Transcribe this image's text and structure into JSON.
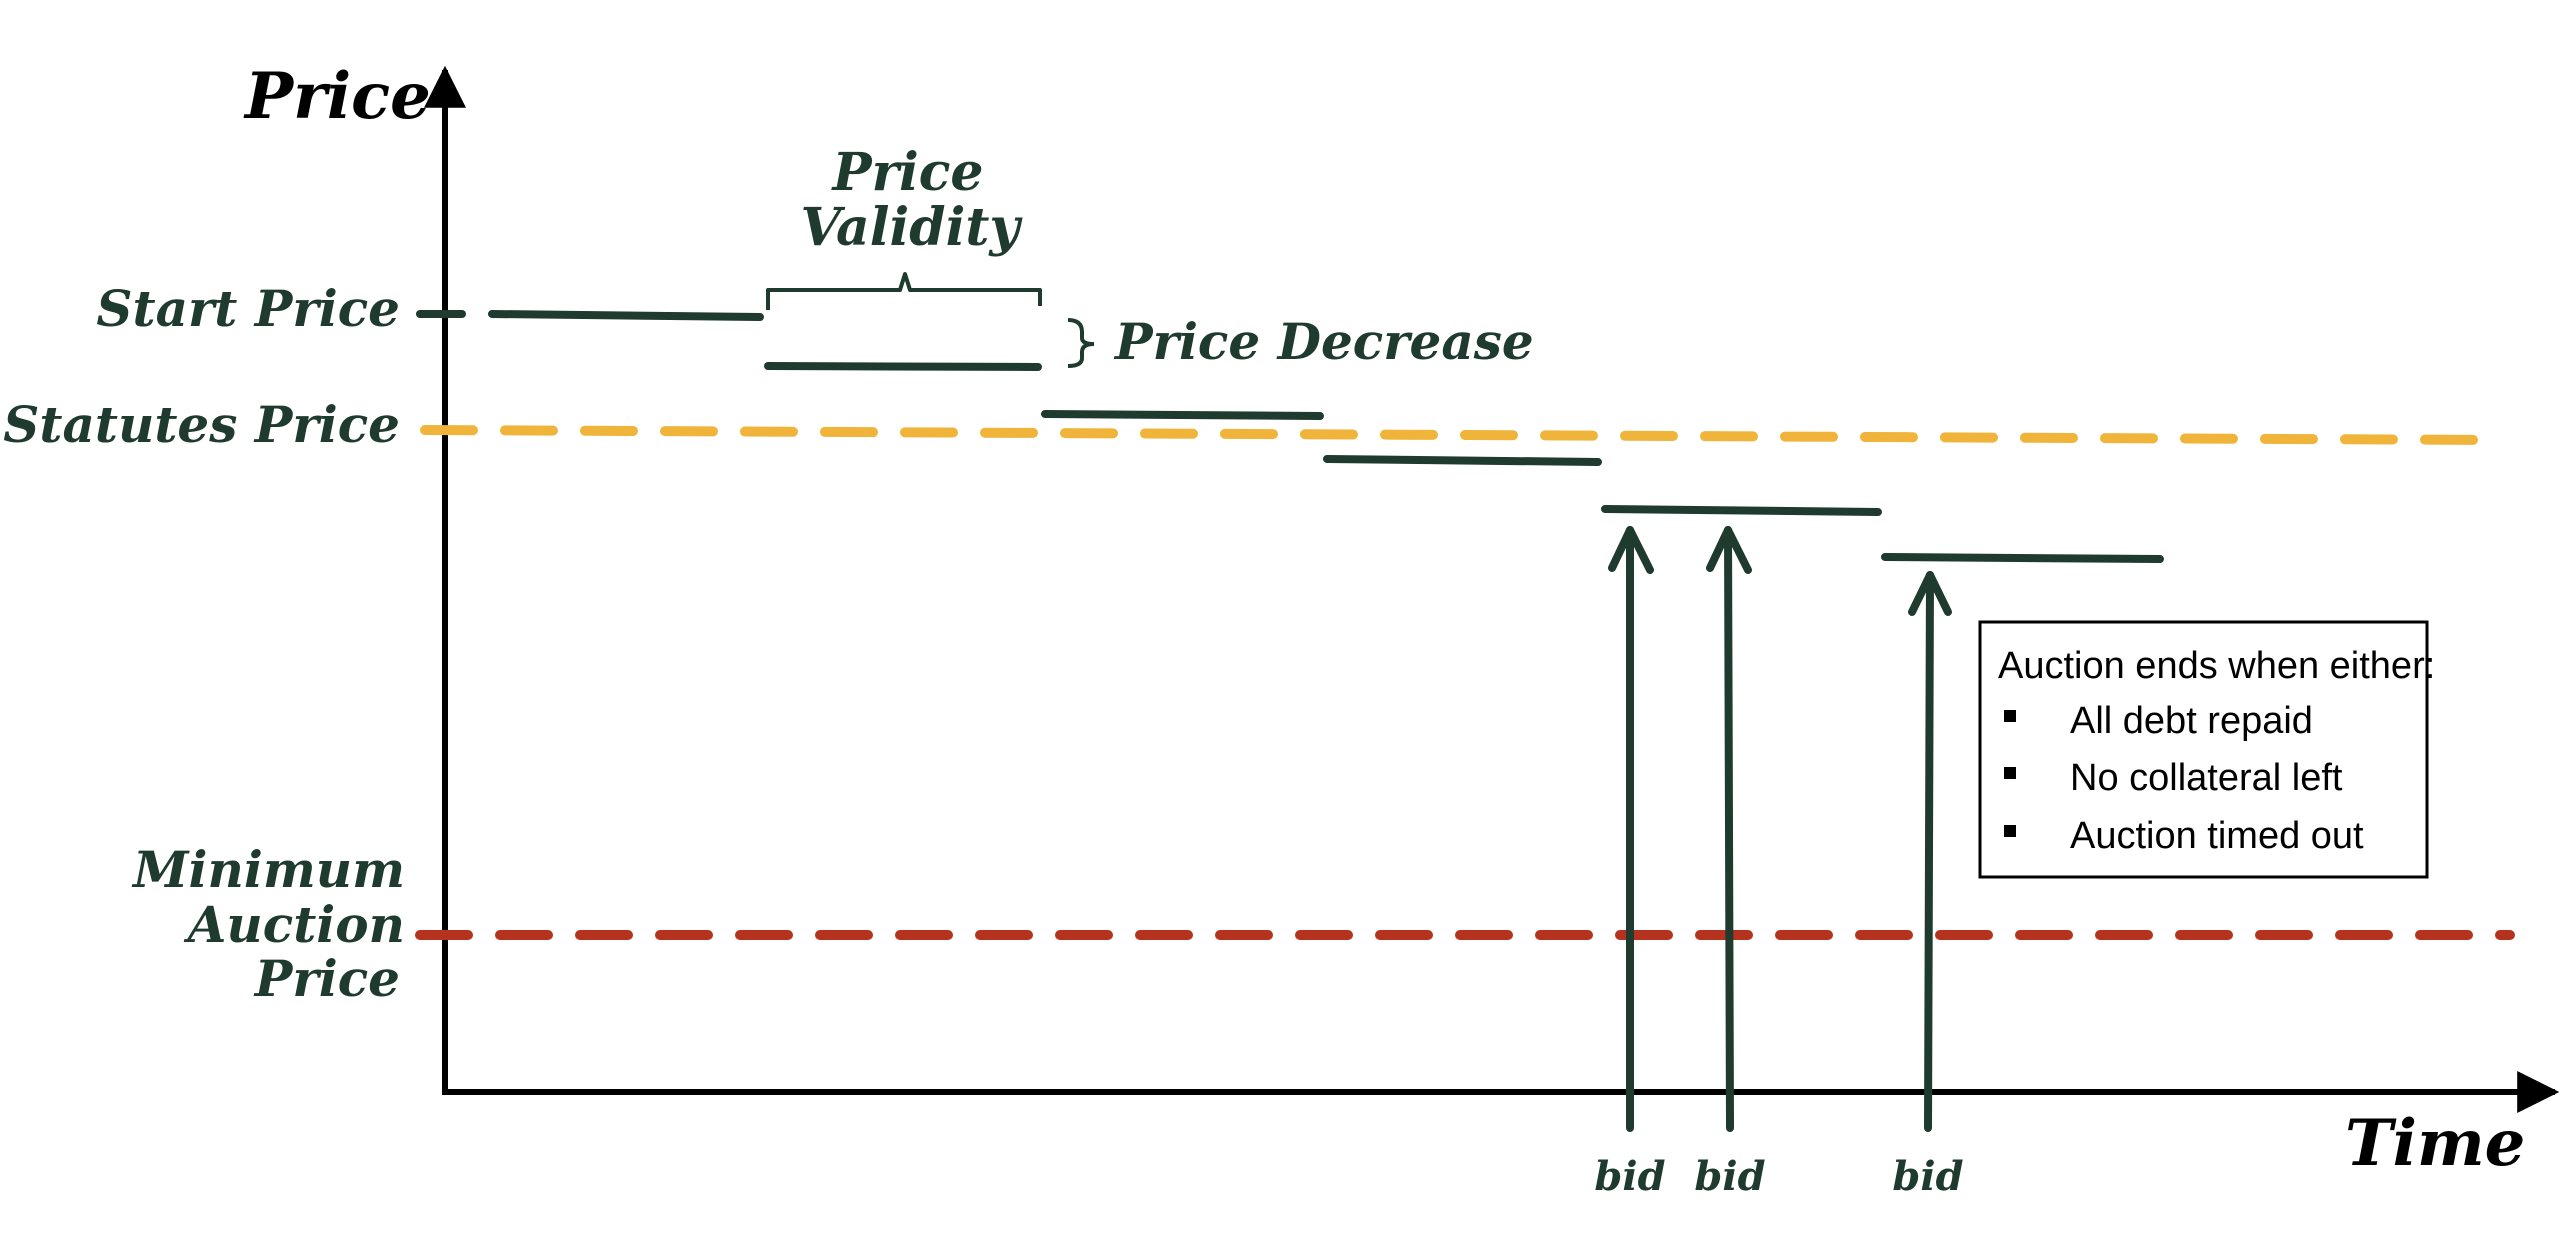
{
  "axes": {
    "y_label": "Price",
    "x_label": "Time"
  },
  "levels": {
    "start_price": "Start Price",
    "statutes_price": "Statutes Price",
    "minimum_auction_price": [
      "Minimum",
      "Auction",
      "Price"
    ]
  },
  "annotations": {
    "price_validity": [
      "Price",
      "Validity"
    ],
    "price_decrease": "Price Decrease"
  },
  "bids": [
    "bid",
    "bid",
    "bid"
  ],
  "legend": {
    "title": "Auction ends when either:",
    "items": [
      "All debt repaid",
      "No collateral left",
      "Auction timed out"
    ]
  },
  "colors": {
    "ink": "#1f3a2e",
    "statutes_line": "#f0b43a",
    "minimum_line": "#b5321f",
    "axis": "#000000"
  }
}
